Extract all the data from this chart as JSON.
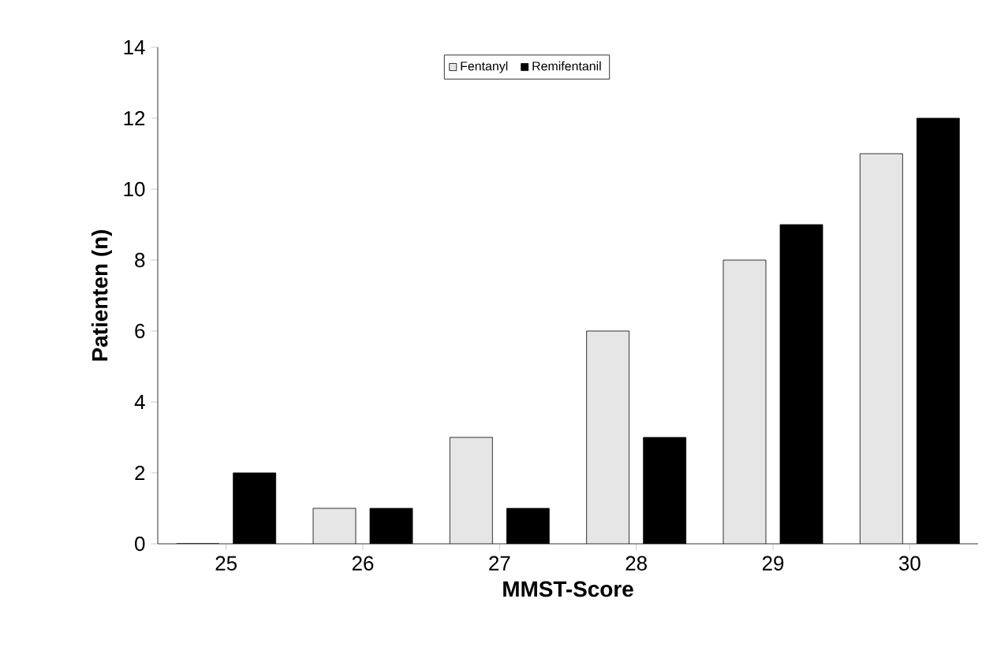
{
  "chart_data": {
    "type": "bar",
    "xlabel": "MMST-Score",
    "ylabel": "Patienten (n)",
    "categories": [
      "25",
      "26",
      "27",
      "28",
      "29",
      "30"
    ],
    "series": [
      {
        "name": "Fentanyl",
        "color": "#e6e6e6",
        "values": [
          0,
          1,
          3,
          6,
          8,
          11
        ]
      },
      {
        "name": "Remifentanil",
        "color": "#000000",
        "values": [
          2,
          1,
          1,
          3,
          9,
          12
        ]
      }
    ],
    "ylim": [
      0,
      14
    ],
    "yticks": [
      0,
      2,
      4,
      6,
      8,
      10,
      12,
      14
    ],
    "legend": "top",
    "grid": false
  }
}
